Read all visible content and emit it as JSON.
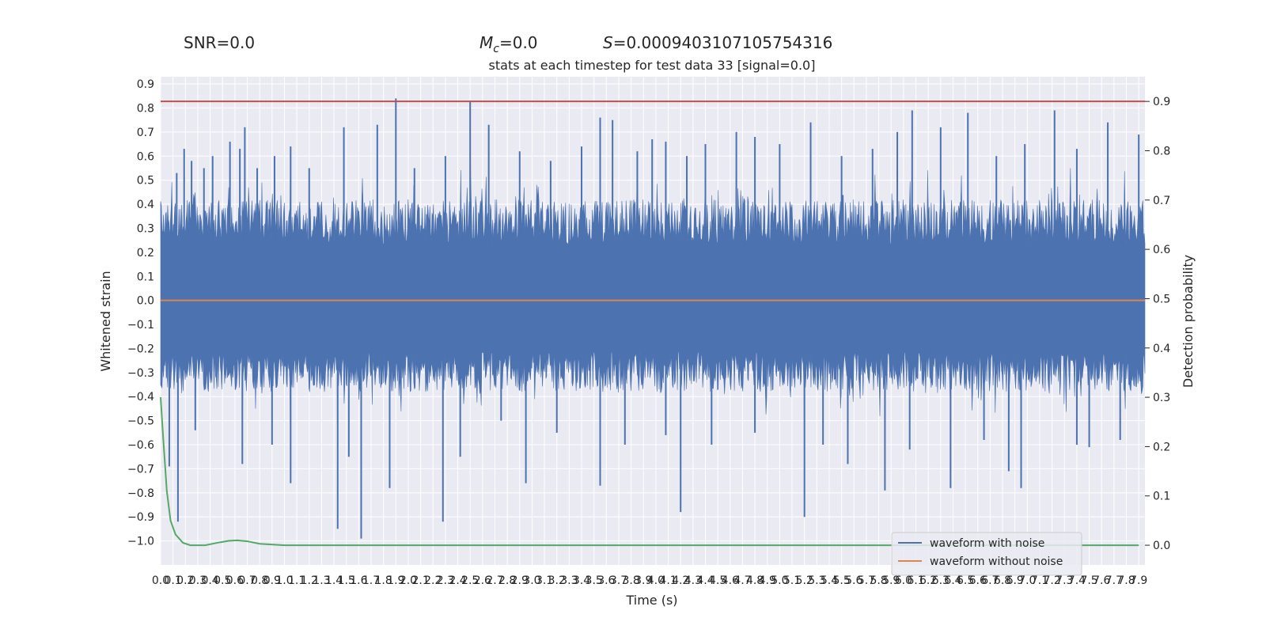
{
  "header": {
    "snr_label": "SNR=0.0",
    "mc_symbol": "M",
    "mc_sub": "c",
    "mc_value": "=0.0",
    "s_symbol": "S",
    "s_value": "=0.0009403107105754316"
  },
  "chart_data": {
    "type": "line",
    "title": "stats at each timestep for test data 33 [signal=0.0]",
    "xlabel": "Time (s)",
    "ylabel": "Whitened strain",
    "y2label": "Detection probability",
    "xlim": [
      0.0,
      7.95
    ],
    "ylim": [
      -1.1,
      0.93
    ],
    "y2lim": [
      -0.04,
      0.95
    ],
    "x_ticks": [
      0.0,
      0.1,
      0.2,
      0.3,
      0.4,
      0.5,
      0.6,
      0.7,
      0.8,
      0.9,
      1.0,
      1.1,
      1.2,
      1.3,
      1.4,
      1.5,
      1.6,
      1.7,
      1.8,
      1.9,
      2.0,
      2.1,
      2.2,
      2.3,
      2.4,
      2.5,
      2.6,
      2.7,
      2.8,
      2.9,
      3.0,
      3.1,
      3.2,
      3.3,
      3.4,
      3.5,
      3.6,
      3.7,
      3.8,
      3.9,
      4.0,
      4.1,
      4.2,
      4.3,
      4.4,
      4.5,
      4.6,
      4.7,
      4.8,
      4.9,
      5.0,
      5.1,
      5.2,
      5.3,
      5.4,
      5.5,
      5.6,
      5.7,
      5.8,
      5.9,
      6.0,
      6.1,
      6.2,
      6.3,
      6.4,
      6.5,
      6.6,
      6.7,
      6.8,
      6.9,
      7.0,
      7.1,
      7.2,
      7.3,
      7.4,
      7.5,
      7.6,
      7.7,
      7.8,
      7.9
    ],
    "x_tick_labels": [
      "0.0",
      "0.1",
      "0.2",
      "0.3",
      "0.4",
      "0.5",
      "0.6",
      "0.7",
      "0.8",
      "0.9",
      "1.0",
      "1.1",
      "1.2",
      "1.3",
      "1.4",
      "1.5",
      "1.6",
      "1.7",
      "1.8",
      "1.9",
      "2.0",
      "2.1",
      "2.2",
      "2.3",
      "2.4",
      "2.5",
      "2.6",
      "2.7",
      "2.8",
      "2.9",
      "3.0",
      "3.1",
      "3.2",
      "3.3",
      "3.4",
      "3.5",
      "3.6",
      "3.7",
      "3.8",
      "3.9",
      "4.0",
      "4.1",
      "4.2",
      "4.3",
      "4.4",
      "4.5",
      "4.6",
      "4.7",
      "4.8",
      "4.9",
      "5.0",
      "5.1",
      "5.2",
      "5.3",
      "5.4",
      "5.5",
      "5.6",
      "5.7",
      "5.8",
      "5.9",
      "6.0",
      "6.1",
      "6.2",
      "6.3",
      "6.4",
      "6.5",
      "6.6",
      "6.7",
      "6.8",
      "6.9",
      "7.0",
      "7.1",
      "7.2",
      "7.3",
      "7.4",
      "7.5",
      "7.6",
      "7.7",
      "7.8",
      "7.9"
    ],
    "y_ticks": [
      0.9,
      0.8,
      0.7,
      0.6,
      0.5,
      0.4,
      0.3,
      0.2,
      0.1,
      0.0,
      -0.1,
      -0.2,
      -0.3,
      -0.4,
      -0.5,
      -0.6,
      -0.7,
      -0.8,
      -0.9,
      -1.0
    ],
    "y_tick_labels": [
      "0.9",
      "0.8",
      "0.7",
      "0.6",
      "0.5",
      "0.4",
      "0.3",
      "0.2",
      "0.1",
      "0.0",
      "−0.1",
      "−0.2",
      "−0.3",
      "−0.4",
      "−0.5",
      "−0.6",
      "−0.7",
      "−0.8",
      "−0.9",
      "−1.0"
    ],
    "y2_ticks": [
      0.9,
      0.8,
      0.7,
      0.6,
      0.5,
      0.4,
      0.3,
      0.2,
      0.1,
      0.0
    ],
    "y2_tick_labels": [
      "0.9",
      "0.8",
      "0.7",
      "0.6",
      "0.5",
      "0.4",
      "0.3",
      "0.2",
      "0.1",
      "0.0"
    ],
    "grid": true,
    "legend_position": "lower-right",
    "series": [
      {
        "name": "waveform with noise",
        "color": "#4c72b0",
        "axis": "left",
        "note_noise": true,
        "envelope_upper_typical": 0.42,
        "envelope_lower_typical": -0.38,
        "peaks_up": [
          [
            0.13,
            0.53
          ],
          [
            0.19,
            0.63
          ],
          [
            0.25,
            0.58
          ],
          [
            0.35,
            0.55
          ],
          [
            0.42,
            0.6
          ],
          [
            0.56,
            0.66
          ],
          [
            0.64,
            0.63
          ],
          [
            0.68,
            0.72
          ],
          [
            0.78,
            0.55
          ],
          [
            0.92,
            0.6
          ],
          [
            1.05,
            0.64
          ],
          [
            1.2,
            0.55
          ],
          [
            1.48,
            0.72
          ],
          [
            1.75,
            0.73
          ],
          [
            1.9,
            0.84
          ],
          [
            2.05,
            0.55
          ],
          [
            2.3,
            0.6
          ],
          [
            2.5,
            0.83
          ],
          [
            2.65,
            0.73
          ],
          [
            2.9,
            0.62
          ],
          [
            3.15,
            0.58
          ],
          [
            3.4,
            0.64
          ],
          [
            3.55,
            0.76
          ],
          [
            3.65,
            0.75
          ],
          [
            3.85,
            0.62
          ],
          [
            3.97,
            0.67
          ],
          [
            4.08,
            0.66
          ],
          [
            4.25,
            0.6
          ],
          [
            4.4,
            0.65
          ],
          [
            4.65,
            0.7
          ],
          [
            4.8,
            0.68
          ],
          [
            5.0,
            0.65
          ],
          [
            5.25,
            0.74
          ],
          [
            5.5,
            0.6
          ],
          [
            5.75,
            0.63
          ],
          [
            5.95,
            0.7
          ],
          [
            6.07,
            0.79
          ],
          [
            6.3,
            0.72
          ],
          [
            6.52,
            0.78
          ],
          [
            6.75,
            0.6
          ],
          [
            6.98,
            0.65
          ],
          [
            7.22,
            0.79
          ],
          [
            7.4,
            0.63
          ],
          [
            7.65,
            0.74
          ],
          [
            7.9,
            0.69
          ]
        ],
        "peaks_down": [
          [
            0.07,
            -0.69
          ],
          [
            0.14,
            -0.92
          ],
          [
            0.28,
            -0.54
          ],
          [
            0.66,
            -0.68
          ],
          [
            0.9,
            -0.6
          ],
          [
            1.05,
            -0.76
          ],
          [
            1.43,
            -0.95
          ],
          [
            1.52,
            -0.65
          ],
          [
            1.62,
            -0.99
          ],
          [
            1.85,
            -0.78
          ],
          [
            2.28,
            -0.92
          ],
          [
            2.42,
            -0.65
          ],
          [
            2.75,
            -0.5
          ],
          [
            2.95,
            -0.76
          ],
          [
            3.2,
            -0.55
          ],
          [
            3.55,
            -0.77
          ],
          [
            3.75,
            -0.6
          ],
          [
            4.08,
            -0.56
          ],
          [
            4.2,
            -0.88
          ],
          [
            4.45,
            -0.6
          ],
          [
            4.8,
            -0.55
          ],
          [
            5.2,
            -0.9
          ],
          [
            5.35,
            -0.6
          ],
          [
            5.55,
            -0.68
          ],
          [
            5.85,
            -0.79
          ],
          [
            6.05,
            -0.62
          ],
          [
            6.38,
            -0.78
          ],
          [
            6.65,
            -0.58
          ],
          [
            6.85,
            -0.71
          ],
          [
            6.95,
            -0.78
          ],
          [
            7.4,
            -0.6
          ],
          [
            7.5,
            -0.61
          ],
          [
            7.75,
            -0.58
          ]
        ]
      },
      {
        "name": "waveform without noise",
        "color": "#dd8452",
        "axis": "left",
        "x": [
          0.0,
          7.95
        ],
        "y": [
          0.0,
          0.0
        ]
      },
      {
        "name": "",
        "color": "#55a868",
        "axis": "right",
        "x": [
          0.0,
          0.02,
          0.05,
          0.08,
          0.12,
          0.18,
          0.24,
          0.3,
          0.36,
          0.42,
          0.48,
          0.55,
          0.62,
          0.7,
          0.8,
          1.0,
          1.5,
          2.0,
          3.0,
          4.0,
          5.0,
          6.0,
          7.0,
          7.9
        ],
        "y": [
          0.3,
          0.22,
          0.11,
          0.05,
          0.022,
          0.005,
          0.0,
          0.0,
          0.0,
          0.003,
          0.006,
          0.009,
          0.01,
          0.008,
          0.003,
          0.0,
          0.0,
          0.0,
          0.0,
          0.0,
          0.0,
          0.0,
          0.0,
          0.0
        ]
      },
      {
        "name": "",
        "color": "#c44e52",
        "axis": "right",
        "x": [
          0.0,
          7.95
        ],
        "y": [
          0.9,
          0.9
        ]
      }
    ]
  }
}
